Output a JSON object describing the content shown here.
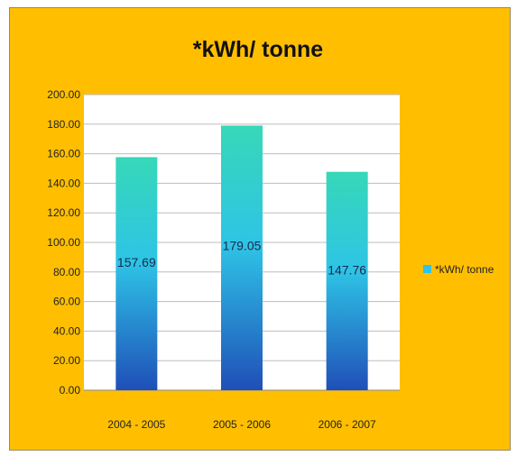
{
  "chart_data": {
    "type": "bar",
    "title": "*kWh/ tonne",
    "categories": [
      "2004 - 2005",
      "2005 - 2006",
      "2006 - 2007"
    ],
    "series": [
      {
        "name": "*kWh/ tonne",
        "values": [
          157.69,
          179.05,
          147.76
        ]
      }
    ],
    "data_labels": [
      "157.69",
      "179.05",
      "147.76"
    ],
    "yticks": [
      "0.00",
      "20.00",
      "40.00",
      "60.00",
      "80.00",
      "100.00",
      "120.00",
      "140.00",
      "160.00",
      "180.00",
      "200.00"
    ],
    "ylim": [
      0,
      200
    ],
    "grid": true,
    "legend_position": "right",
    "colors": {
      "background": "#FFBF00",
      "plot_area": "#FFFFFF",
      "bar_top": "#36D8B8",
      "bar_mid": "#2EC4E6",
      "bar_bottom": "#1F4FB8",
      "gridline": "#BDBDBD"
    }
  }
}
